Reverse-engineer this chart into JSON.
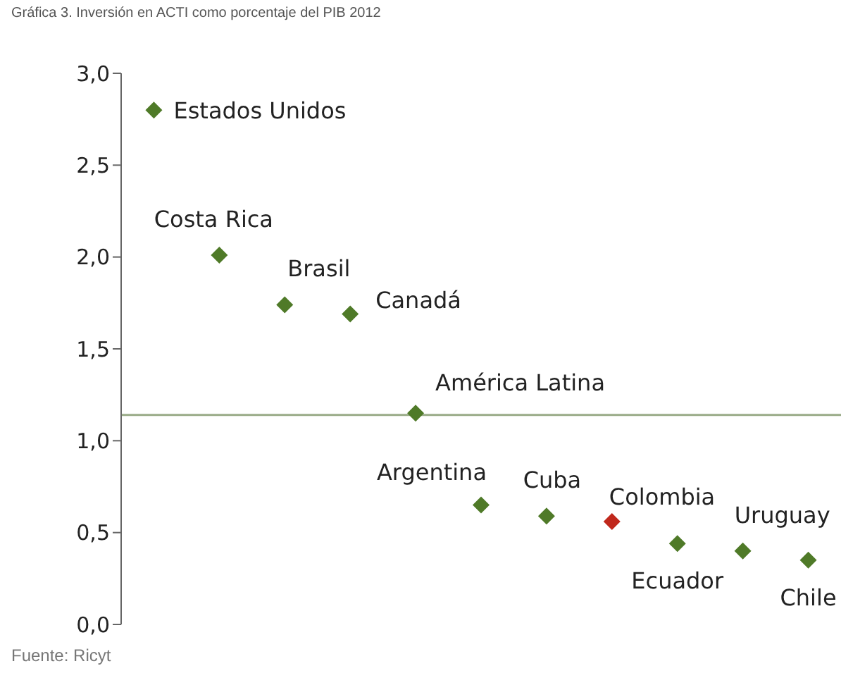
{
  "chart_data": {
    "type": "scatter",
    "title": "Gráfica 3. Inversión en ACTI como porcentaje del PIB 2012",
    "categories": [
      null,
      null,
      null,
      null,
      null,
      null,
      null,
      null,
      null,
      null,
      null
    ],
    "values": [
      2.8,
      2.01,
      1.74,
      1.69,
      1.15,
      0.65,
      0.59,
      0.56,
      0.44,
      0.4,
      0.35
    ],
    "colors": [
      "#4f7a28",
      "#4f7a28",
      "#4f7a28",
      "#4f7a28",
      "#4f7a28",
      "#4f7a28",
      "#4f7a28",
      "#c0281c",
      "#4f7a28",
      "#4f7a28",
      "#4f7a28"
    ],
    "marker": "diamond",
    "ylim": [
      0,
      3
    ],
    "yticks": [
      {
        "value": 0,
        "label": "0,0"
      },
      {
        "value": 0.5,
        "label": "0,5"
      },
      {
        "value": 1,
        "label": "1,0"
      },
      {
        "value": 1.5,
        "label": "1,5"
      },
      {
        "value": 2,
        "label": "2,0"
      },
      {
        "value": 2.5,
        "label": "2,5"
      },
      {
        "value": 3,
        "label": "3,0"
      }
    ],
    "ref_lines": [
      {
        "axis": "y",
        "value": 1.14,
        "color": "#9aab88"
      }
    ],
    "tick_labels": "y",
    "grid": false,
    "legend": false,
    "annotations": [
      "Estados Unidos",
      "Costa Rica",
      "Brasil",
      "Canadá",
      "América Latina",
      "Argentina",
      "Cuba",
      "Colombia",
      "Ecuador",
      "Uruguay",
      "Chile",
      "Fuente: Ricyt"
    ]
  }
}
